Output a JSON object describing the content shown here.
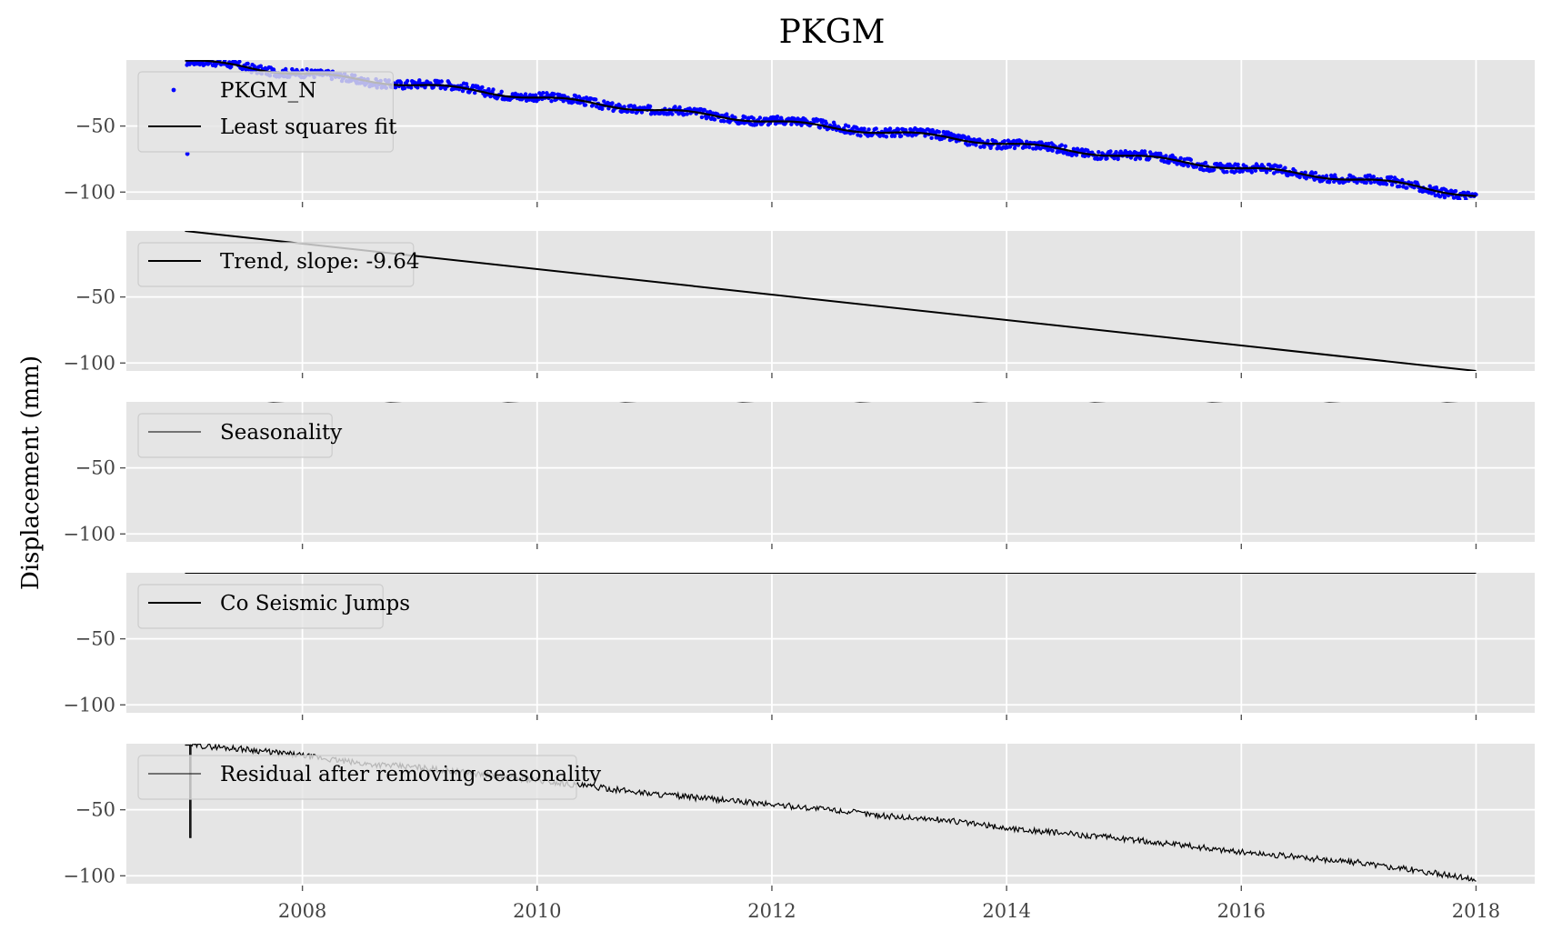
{
  "chart_data": {
    "type": "line",
    "title": "PKGM",
    "ylabel": "Displacement (mm)",
    "xlabel": "",
    "x_range": [
      2006.5,
      2018.5
    ],
    "x_ticks": [
      2008,
      2010,
      2012,
      2014,
      2016,
      2018
    ],
    "x_tick_labels": [
      "2008",
      "2010",
      "2012",
      "2014",
      "2016",
      "2018"
    ],
    "ylim": [
      -106,
      0
    ],
    "y_ticks": [
      -50,
      -100
    ],
    "y_tick_labels": [
      "−50",
      "−100"
    ],
    "grid": true,
    "panels": [
      {
        "legend_position": "upper-left",
        "series": [
          {
            "name": "PKGM_N",
            "kind": "scatter",
            "color": "#0000ff",
            "x": [
              2007.0,
              2007.5,
              2008.0,
              2008.5,
              2009.0,
              2009.5,
              2010.0,
              2010.5,
              2011.0,
              2011.5,
              2012.0,
              2012.5,
              2013.0,
              2013.5,
              2014.0,
              2014.5,
              2015.0,
              2015.5,
              2016.0,
              2016.5,
              2017.0,
              2017.5,
              2018.0
            ],
            "y": [
              -1,
              -5,
              -10,
              -16,
              -18,
              -23,
              -28,
              -33,
              -38,
              -42,
              -46,
              -50,
              -55,
              -58,
              -64,
              -68,
              -72,
              -77,
              -82,
              -86,
              -90,
              -96,
              -103
            ]
          },
          {
            "name": "Least squares fit",
            "kind": "line",
            "color": "#000000",
            "x": [
              2007.0,
              2007.5,
              2008.0,
              2008.5,
              2009.0,
              2009.5,
              2010.0,
              2010.5,
              2011.0,
              2011.5,
              2012.0,
              2012.5,
              2013.0,
              2013.5,
              2014.0,
              2014.5,
              2015.0,
              2015.5,
              2016.0,
              2016.5,
              2017.0,
              2017.5,
              2018.0
            ],
            "y": [
              -0.5,
              -5,
              -10.5,
              -15,
              -19,
              -23.5,
              -28.5,
              -33,
              -38,
              -42,
              -46.5,
              -51,
              -55,
              -58.5,
              -63.5,
              -68,
              -72.5,
              -77,
              -82,
              -86,
              -90.5,
              -95.5,
              -103
            ]
          }
        ]
      },
      {
        "legend_position": "upper-left",
        "series": [
          {
            "name": "Trend, slope: -9.64",
            "kind": "line",
            "color": "#000000",
            "x": [
              2007.0,
              2018.0
            ],
            "y": [
              0,
              -106
            ]
          }
        ]
      },
      {
        "legend_position": "upper-left",
        "series": [
          {
            "name": "Seasonality",
            "kind": "line",
            "color": "#000000",
            "x": [
              2007.0,
              2007.25,
              2007.5,
              2007.75,
              2008.0,
              2008.25,
              2008.5,
              2008.75,
              2009.0,
              2009.25,
              2009.5,
              2009.75,
              2010.0,
              2010.25,
              2010.5,
              2010.75,
              2011.0,
              2011.25,
              2011.5,
              2011.75,
              2012.0,
              2012.25,
              2012.5,
              2012.75,
              2013.0,
              2013.25,
              2013.5,
              2013.75,
              2014.0,
              2014.25,
              2014.5,
              2014.75,
              2015.0,
              2015.25,
              2015.5,
              2015.75,
              2016.0,
              2016.25,
              2016.5,
              2016.75,
              2017.0,
              2017.25,
              2017.5,
              2017.75,
              2018.0
            ],
            "y": [
              1,
              2,
              2,
              0,
              1,
              2,
              2,
              0,
              1,
              2,
              2,
              0,
              1,
              2,
              2,
              0,
              1,
              2,
              2,
              0,
              1,
              2,
              2,
              0,
              1,
              2,
              2,
              0,
              1,
              2,
              2,
              0,
              1,
              2,
              2,
              0,
              1,
              2,
              2,
              0,
              1,
              2,
              2,
              0,
              1
            ]
          }
        ]
      },
      {
        "legend_position": "upper-left",
        "series": [
          {
            "name": "Co Seismic Jumps",
            "kind": "line",
            "color": "#000000",
            "x": [
              2007.0,
              2018.0
            ],
            "y": [
              0,
              0
            ]
          }
        ]
      },
      {
        "legend_position": "upper-left",
        "series": [
          {
            "name": "Residual after removing seasonality",
            "kind": "line",
            "color": "#000000",
            "x": [
              2007.0,
              2007.04,
              2007.04,
              2007.05,
              2007.05,
              2007.5,
              2008.0,
              2008.5,
              2009.0,
              2009.5,
              2010.0,
              2010.5,
              2011.0,
              2011.5,
              2012.0,
              2012.5,
              2013.0,
              2013.5,
              2014.0,
              2014.5,
              2015.0,
              2015.5,
              2016.0,
              2016.5,
              2017.0,
              2017.5,
              2018.0
            ],
            "y": [
              -1,
              -1,
              -71,
              -71,
              -1,
              -4,
              -9,
              -15,
              -18,
              -23,
              -28,
              -33,
              -38,
              -42,
              -46,
              -50,
              -55,
              -58,
              -64,
              -68,
              -72,
              -77,
              -82,
              -86,
              -90,
              -96,
              -103
            ]
          }
        ]
      }
    ]
  }
}
